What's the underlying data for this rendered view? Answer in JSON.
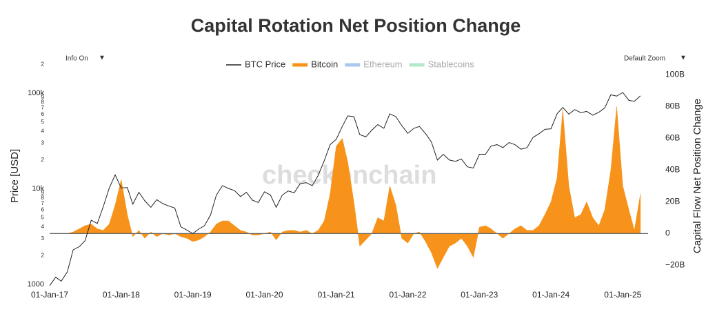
{
  "chart_data": {
    "type": "dual-axis-line-area",
    "title": "Capital Rotation Net Position Change",
    "watermark": "checkonchain",
    "controls": {
      "left": "Info On",
      "right": "Default Zoom",
      "arrow": "▼"
    },
    "y_label": "Price [USD]",
    "y2_label": "Capital Flow Net Position Change",
    "ylog": true,
    "grid": false,
    "zeroline": true,
    "legend": "top",
    "x": [
      "2017-01-01",
      "2017-02-01",
      "2017-03-01",
      "2017-04-01",
      "2017-05-01",
      "2017-06-01",
      "2017-07-01",
      "2017-08-01",
      "2017-09-01",
      "2017-10-01",
      "2017-11-01",
      "2017-12-01",
      "2018-01-01",
      "2018-02-01",
      "2018-03-01",
      "2018-04-01",
      "2018-05-01",
      "2018-06-01",
      "2018-07-01",
      "2018-08-01",
      "2018-09-01",
      "2018-10-01",
      "2018-11-01",
      "2018-12-01",
      "2019-01-01",
      "2019-02-01",
      "2019-03-01",
      "2019-04-01",
      "2019-05-01",
      "2019-06-01",
      "2019-07-01",
      "2019-08-01",
      "2019-09-01",
      "2019-10-01",
      "2019-11-01",
      "2019-12-01",
      "2020-01-01",
      "2020-02-01",
      "2020-03-01",
      "2020-04-01",
      "2020-05-01",
      "2020-06-01",
      "2020-07-01",
      "2020-08-01",
      "2020-09-01",
      "2020-10-01",
      "2020-11-01",
      "2020-12-01",
      "2021-01-01",
      "2021-02-01",
      "2021-03-01",
      "2021-04-01",
      "2021-05-01",
      "2021-06-01",
      "2021-07-01",
      "2021-08-01",
      "2021-09-01",
      "2021-10-01",
      "2021-11-01",
      "2021-12-01",
      "2022-01-01",
      "2022-02-01",
      "2022-03-01",
      "2022-04-01",
      "2022-05-01",
      "2022-06-01",
      "2022-07-01",
      "2022-08-01",
      "2022-09-01",
      "2022-10-01",
      "2022-11-01",
      "2022-12-01",
      "2023-01-01",
      "2023-02-01",
      "2023-03-01",
      "2023-04-01",
      "2023-05-01",
      "2023-06-01",
      "2023-07-01",
      "2023-08-01",
      "2023-09-01",
      "2023-10-01",
      "2023-11-01",
      "2023-12-01",
      "2024-01-01",
      "2024-02-01",
      "2024-03-01",
      "2024-04-01",
      "2024-05-01",
      "2024-06-01",
      "2024-07-01",
      "2024-08-01",
      "2024-09-01",
      "2024-10-01",
      "2024-11-01",
      "2024-12-01",
      "2025-01-01",
      "2025-02-01",
      "2025-03-01",
      "2025-04-01"
    ],
    "series": [
      {
        "name": "BTC Price",
        "color": "#222222",
        "axis": "y",
        "style": "line",
        "values": [
          970,
          1190,
          1080,
          1350,
          2300,
          2480,
          2870,
          4700,
          4340,
          6470,
          10200,
          14000,
          10200,
          10300,
          6900,
          9200,
          7500,
          6400,
          7700,
          7000,
          6600,
          6300,
          4000,
          3700,
          3400,
          3800,
          4100,
          5300,
          8600,
          10800,
          10100,
          9600,
          8300,
          9200,
          7600,
          7200,
          9300,
          8600,
          6400,
          8600,
          9500,
          9100,
          11300,
          11600,
          10800,
          13800,
          19700,
          29000,
          33000,
          45000,
          58000,
          57000,
          37000,
          35000,
          41000,
          47000,
          43000,
          61000,
          57000,
          46000,
          38000,
          43000,
          45000,
          38000,
          31000,
          20000,
          23000,
          20000,
          19400,
          20500,
          17000,
          16500,
          23000,
          23000,
          28000,
          29000,
          27000,
          30500,
          29000,
          26000,
          27000,
          34500,
          37700,
          42000,
          42500,
          61000,
          71000,
          60500,
          67500,
          62700,
          64600,
          59000,
          63300,
          70200,
          96400,
          93400,
          102000,
          84400,
          82500,
          94000
        ]
      },
      {
        "name": "Bitcoin",
        "color": "#f7931a",
        "axis": "y2",
        "style": "area",
        "values": [
          0,
          0,
          0,
          0,
          1,
          3,
          5,
          6,
          3,
          2,
          6,
          18,
          34,
          12,
          -2,
          2,
          -3,
          1,
          -2,
          0,
          -1,
          0,
          -2,
          -3,
          -5,
          -4,
          -2,
          1,
          6,
          8,
          8,
          5,
          2,
          1,
          -1,
          -1,
          0,
          1,
          -4,
          1,
          2,
          2,
          1,
          2,
          0,
          2,
          8,
          25,
          55,
          60,
          45,
          20,
          -8,
          -4,
          0,
          10,
          8,
          30,
          18,
          -3,
          -6,
          0,
          1,
          -5,
          -12,
          -22,
          -15,
          -8,
          -6,
          -3,
          -8,
          -15,
          4,
          5,
          3,
          0,
          -3,
          0,
          3,
          5,
          2,
          2,
          5,
          12,
          20,
          35,
          78,
          30,
          10,
          12,
          20,
          10,
          5,
          15,
          40,
          80,
          30,
          15,
          2,
          25
        ]
      },
      {
        "name": "Ethereum",
        "color": "#a9c8f0",
        "axis": "y2",
        "style": "hidden"
      },
      {
        "name": "Stablecoins",
        "color": "#b3e8c8",
        "axis": "y2",
        "style": "hidden"
      }
    ],
    "xlim": [
      "2017-01-01",
      "2025-05-10"
    ],
    "xticks": [
      {
        "value": "2017-01-01",
        "label": "01-Jan-17"
      },
      {
        "value": "2018-01-01",
        "label": "01-Jan-18"
      },
      {
        "value": "2019-01-01",
        "label": "01-Jan-19"
      },
      {
        "value": "2020-01-01",
        "label": "01-Jan-20"
      },
      {
        "value": "2021-01-01",
        "label": "01-Jan-21"
      },
      {
        "value": "2022-01-01",
        "label": "01-Jan-22"
      },
      {
        "value": "2023-01-01",
        "label": "01-Jan-23"
      },
      {
        "value": "2024-01-01",
        "label": "01-Jan-24"
      },
      {
        "value": "2025-01-01",
        "label": "01-Jan-25"
      }
    ],
    "ylim": [
      1000,
      212000
    ],
    "yticks": [
      1000,
      {
        "value": 2000,
        "label": "2"
      },
      {
        "value": 3000,
        "label": "3"
      },
      {
        "value": 4000,
        "label": "4"
      },
      {
        "value": 5000,
        "label": "5"
      },
      {
        "value": 6000,
        "label": "6"
      },
      {
        "value": 7000,
        "label": "7"
      },
      {
        "value": 8000,
        "label": "8"
      },
      {
        "value": 9000,
        "label": "9"
      },
      {
        "value": 10000,
        "label": "10k"
      },
      {
        "value": 20000,
        "label": "2"
      },
      {
        "value": 30000,
        "label": "3"
      },
      {
        "value": 40000,
        "label": "4"
      },
      {
        "value": 50000,
        "label": "5"
      },
      {
        "value": 60000,
        "label": "6"
      },
      {
        "value": 70000,
        "label": "7"
      },
      {
        "value": 80000,
        "label": "8"
      },
      {
        "value": 90000,
        "label": "9"
      },
      {
        "value": 100000,
        "label": "100k"
      },
      {
        "value": 200000,
        "label": "2"
      }
    ],
    "y2lim": [
      -32,
      108
    ],
    "y2ticks": [
      {
        "value": -20,
        "label": "−20B"
      },
      0,
      {
        "value": 20,
        "label": "20B"
      },
      {
        "value": 40,
        "label": "40B"
      },
      {
        "value": 60,
        "label": "60B"
      },
      {
        "value": 80,
        "label": "80B"
      },
      {
        "value": 100,
        "label": "100B"
      }
    ]
  }
}
